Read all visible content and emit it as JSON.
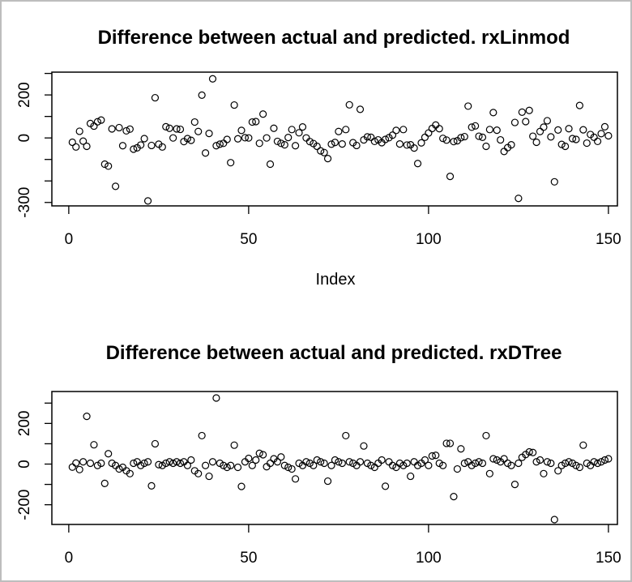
{
  "window": {
    "background": "#ffffff",
    "border_color": "#bdbdbd",
    "foreground": "#000000"
  },
  "chart_data": [
    {
      "type": "scatter",
      "title": "Difference between actual and predicted. rxLinmod",
      "xlabel": "Index",
      "ylabel": "",
      "marker": "open-circle",
      "grid": false,
      "x_ticks": [
        0,
        50,
        100,
        150
      ],
      "y_ticks": [
        300,
        200,
        100,
        0,
        -100,
        -200,
        -300
      ],
      "y_tick_labels": [
        200,
        0,
        -300
      ],
      "xlim": [
        -4.7,
        152.5
      ],
      "ylim": [
        -316,
        306
      ],
      "x_is_index_1_to_n": true,
      "values": [
        -20,
        -42,
        31,
        -15,
        -39,
        67,
        55,
        75,
        83,
        -122,
        -131,
        42,
        -225,
        48,
        -36,
        33,
        41,
        -52,
        -46,
        -33,
        -3,
        -293,
        -35,
        187,
        -29,
        -42,
        52,
        45,
        0,
        42,
        40,
        -17,
        -3,
        -11,
        74,
        30,
        199,
        -70,
        21,
        275,
        -36,
        -29,
        -25,
        -7,
        -115,
        153,
        -4,
        35,
        1,
        0,
        74,
        76,
        -25,
        111,
        0,
        -122,
        45,
        -16,
        -25,
        -32,
        2,
        39,
        -36,
        24,
        51,
        0,
        -17,
        -26,
        -39,
        -60,
        -68,
        -96,
        -29,
        -21,
        30,
        -28,
        39,
        154,
        -22,
        -35,
        133,
        -9,
        5,
        3,
        -16,
        -9,
        -22,
        -7,
        1,
        13,
        35,
        -28,
        39,
        -33,
        -32,
        -47,
        -119,
        -23,
        3,
        23,
        44,
        60,
        43,
        -2,
        -10,
        -179,
        -17,
        -13,
        1,
        6,
        148,
        50,
        56,
        8,
        3,
        -39,
        39,
        118,
        36,
        -9,
        -63,
        -45,
        -32,
        72,
        -281,
        120,
        76,
        128,
        8,
        -20,
        30,
        50,
        80,
        5,
        -204,
        37,
        -30,
        -39,
        43,
        -3,
        -7,
        151,
        38,
        -24,
        16,
        3,
        -16,
        20,
        52,
        10
      ]
    },
    {
      "type": "scatter",
      "title": "Difference between actual and predicted. rxDTree",
      "xlabel": "",
      "ylabel": "",
      "marker": "open-circle",
      "grid": false,
      "x_ticks": [
        0,
        50,
        100,
        150
      ],
      "y_ticks": [
        300,
        200,
        100,
        0,
        -100,
        -200
      ],
      "y_tick_labels": [
        200,
        0,
        -200
      ],
      "xlim": [
        -4.7,
        152.5
      ],
      "ylim": [
        -297,
        357
      ],
      "x_is_index_1_to_n": true,
      "values": [
        -15,
        5,
        -27,
        11,
        235,
        4,
        95,
        -7,
        4,
        -95,
        51,
        4,
        -7,
        -24,
        -16,
        -33,
        -47,
        4,
        11,
        -7,
        4,
        11,
        -107,
        100,
        -3,
        -7,
        4,
        11,
        4,
        11,
        4,
        11,
        -7,
        20,
        -33,
        -47,
        140,
        -7,
        -60,
        11,
        325,
        4,
        -7,
        -16,
        -7,
        93,
        -16,
        -110,
        11,
        28,
        -7,
        20,
        53,
        46,
        -13,
        4,
        26,
        11,
        35,
        -7,
        -16,
        -24,
        -73,
        4,
        -7,
        11,
        4,
        -7,
        20,
        11,
        4,
        -84,
        -7,
        20,
        11,
        4,
        140,
        11,
        4,
        -7,
        11,
        89,
        4,
        -7,
        -16,
        4,
        20,
        -109,
        11,
        -7,
        -16,
        4,
        -7,
        4,
        -60,
        11,
        -7,
        4,
        20,
        -7,
        40,
        43,
        4,
        -7,
        102,
        102,
        -160,
        -24,
        75,
        4,
        11,
        -7,
        4,
        11,
        4,
        140,
        -47,
        26,
        20,
        11,
        26,
        4,
        -7,
        -100,
        4,
        33,
        47,
        60,
        57,
        11,
        20,
        -47,
        11,
        4,
        -273,
        -33,
        -7,
        4,
        11,
        4,
        -7,
        -16,
        93,
        4,
        -7,
        11,
        4,
        11,
        20,
        26
      ]
    }
  ]
}
